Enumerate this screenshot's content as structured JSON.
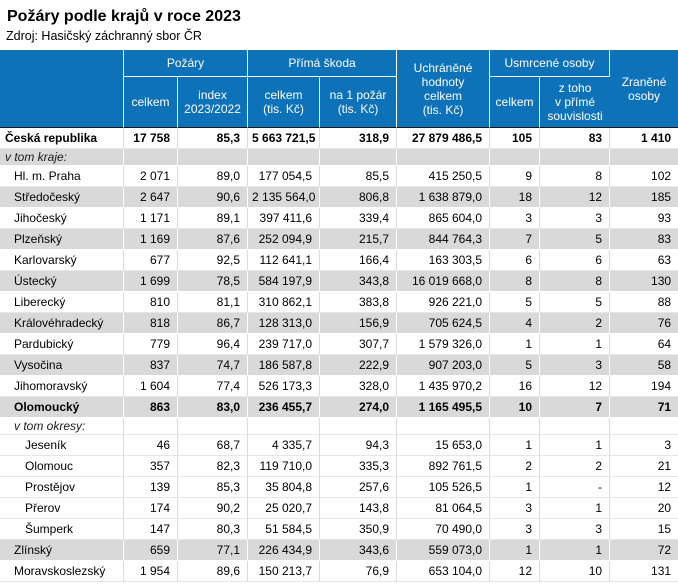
{
  "title": "Požáry podle krajů v roce 2023",
  "source": "Zdroj: Hasičský záchranný sbor ČR",
  "colors": {
    "header_bg": "#0E72B9",
    "stripe_bg": "#D9D9D9",
    "header_text": "#FFFFFF",
    "header_bottom_line": "#1A1A1A"
  },
  "table": {
    "header": {
      "region": "",
      "group_pozary": "Požáry",
      "group_prima_skoda": "Přímá škoda",
      "uchranene": "Uchráněné\nhodnoty\ncelkem\n(tis. Kč)",
      "group_usmrcene": "Usmrcené osoby",
      "zranene": "Zraněné\nosoby",
      "pozary_celkem": "celkem",
      "pozary_index": "index\n2023/2022",
      "skoda_celkem": "celkem\n(tis. Kč)",
      "skoda_na_pozar": "na 1 požár\n(tis. Kč)",
      "usmrcene_celkem": "celkem",
      "usmrcene_z_toho": "z toho\nv přímé\nsouvislosti"
    },
    "rows": [
      {
        "label": "Česká republika",
        "bold": true,
        "shade": false,
        "italic": false,
        "indent": 0,
        "values": [
          "17 758",
          "85,3",
          "5 663 721,5",
          "318,9",
          "27 879 486,5",
          "105",
          "83",
          "1 410"
        ]
      },
      {
        "label": "v tom kraje:",
        "bold": false,
        "shade": true,
        "italic": true,
        "indent": 0,
        "values": [
          "",
          "",
          "",
          "",
          "",
          "",
          "",
          ""
        ]
      },
      {
        "label": "Hl. m. Praha",
        "bold": false,
        "shade": false,
        "italic": false,
        "indent": 1,
        "values": [
          "2 071",
          "89,0",
          "177 054,5",
          "85,5",
          "415 250,5",
          "9",
          "8",
          "102"
        ]
      },
      {
        "label": "Středočeský",
        "bold": false,
        "shade": true,
        "italic": false,
        "indent": 1,
        "values": [
          "2 647",
          "90,6",
          "2 135 564,0",
          "806,8",
          "1 638 879,0",
          "18",
          "12",
          "185"
        ]
      },
      {
        "label": "Jihočeský",
        "bold": false,
        "shade": false,
        "italic": false,
        "indent": 1,
        "values": [
          "1 171",
          "89,1",
          "397 411,6",
          "339,4",
          "865 604,0",
          "3",
          "3",
          "93"
        ]
      },
      {
        "label": "Plzeňský",
        "bold": false,
        "shade": true,
        "italic": false,
        "indent": 1,
        "values": [
          "1 169",
          "87,6",
          "252 094,9",
          "215,7",
          "844 764,3",
          "7",
          "5",
          "83"
        ]
      },
      {
        "label": "Karlovarský",
        "bold": false,
        "shade": false,
        "italic": false,
        "indent": 1,
        "values": [
          "677",
          "92,5",
          "112 641,1",
          "166,4",
          "163 303,5",
          "6",
          "6",
          "63"
        ]
      },
      {
        "label": "Ústecký",
        "bold": false,
        "shade": true,
        "italic": false,
        "indent": 1,
        "values": [
          "1 699",
          "78,5",
          "584 197,9",
          "343,8",
          "16 019 668,0",
          "8",
          "8",
          "130"
        ]
      },
      {
        "label": "Liberecký",
        "bold": false,
        "shade": false,
        "italic": false,
        "indent": 1,
        "values": [
          "810",
          "81,1",
          "310 862,1",
          "383,8",
          "926 221,0",
          "5",
          "5",
          "88"
        ]
      },
      {
        "label": "Královéhradecký",
        "bold": false,
        "shade": true,
        "italic": false,
        "indent": 1,
        "values": [
          "818",
          "86,7",
          "128 313,0",
          "156,9",
          "705 624,5",
          "4",
          "2",
          "76"
        ]
      },
      {
        "label": "Pardubický",
        "bold": false,
        "shade": false,
        "italic": false,
        "indent": 1,
        "values": [
          "779",
          "96,4",
          "239 717,0",
          "307,7",
          "1 579 326,0",
          "1",
          "1",
          "64"
        ]
      },
      {
        "label": "Vysočina",
        "bold": false,
        "shade": true,
        "italic": false,
        "indent": 1,
        "values": [
          "837",
          "74,7",
          "186 587,8",
          "222,9",
          "907 203,0",
          "5",
          "3",
          "58"
        ]
      },
      {
        "label": "Jihomoravský",
        "bold": false,
        "shade": false,
        "italic": false,
        "indent": 1,
        "values": [
          "1 604",
          "77,4",
          "526 173,3",
          "328,0",
          "1 435 970,2",
          "16",
          "12",
          "194"
        ]
      },
      {
        "label": "Olomoucký",
        "bold": true,
        "shade": true,
        "italic": false,
        "indent": 1,
        "values": [
          "863",
          "83,0",
          "236 455,7",
          "274,0",
          "1 165 495,5",
          "10",
          "7",
          "71"
        ]
      },
      {
        "label": "v tom okresy:",
        "bold": false,
        "shade": false,
        "italic": true,
        "indent": 1,
        "values": [
          "",
          "",
          "",
          "",
          "",
          "",
          "",
          ""
        ]
      },
      {
        "label": "Jeseník",
        "bold": false,
        "shade": false,
        "italic": false,
        "indent": 2,
        "values": [
          "46",
          "68,7",
          "4 335,7",
          "94,3",
          "15 653,0",
          "1",
          "1",
          "3"
        ]
      },
      {
        "label": "Olomouc",
        "bold": false,
        "shade": false,
        "italic": false,
        "indent": 2,
        "values": [
          "357",
          "82,3",
          "119 710,0",
          "335,3",
          "892 761,5",
          "2",
          "2",
          "21"
        ]
      },
      {
        "label": "Prostějov",
        "bold": false,
        "shade": false,
        "italic": false,
        "indent": 2,
        "values": [
          "139",
          "85,3",
          "35 804,8",
          "257,6",
          "105 526,5",
          "1",
          "-",
          "12"
        ]
      },
      {
        "label": "Přerov",
        "bold": false,
        "shade": false,
        "italic": false,
        "indent": 2,
        "values": [
          "174",
          "90,2",
          "25 020,7",
          "143,8",
          "81 064,5",
          "3",
          "1",
          "20"
        ]
      },
      {
        "label": "Šumperk",
        "bold": false,
        "shade": false,
        "italic": false,
        "indent": 2,
        "values": [
          "147",
          "80,3",
          "51 584,5",
          "350,9",
          "70 490,0",
          "3",
          "3",
          "15"
        ]
      },
      {
        "label": "Zlínský",
        "bold": false,
        "shade": true,
        "italic": false,
        "indent": 1,
        "values": [
          "659",
          "77,1",
          "226 434,9",
          "343,6",
          "559 073,0",
          "1",
          "1",
          "72"
        ]
      },
      {
        "label": "Moravskoslezský",
        "bold": false,
        "shade": false,
        "italic": false,
        "indent": 1,
        "values": [
          "1 954",
          "89,6",
          "150 213,7",
          "76,9",
          "653 104,0",
          "12",
          "10",
          "131"
        ]
      }
    ]
  }
}
